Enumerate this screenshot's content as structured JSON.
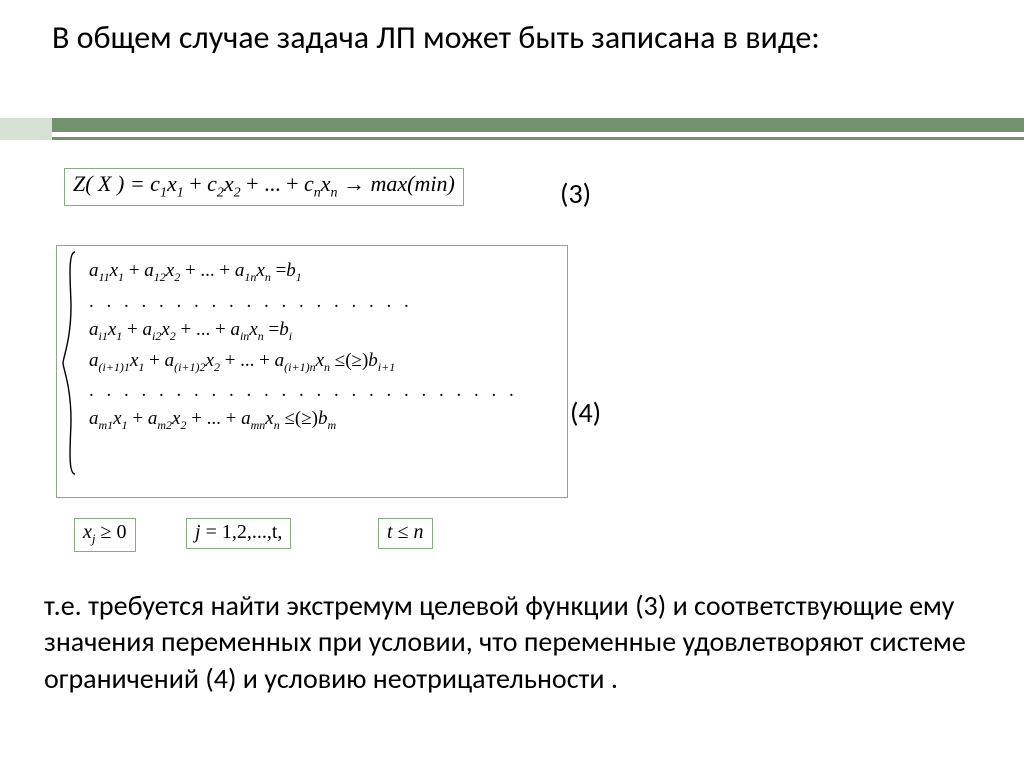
{
  "colors": {
    "accent": "#72926e",
    "accent_light": "#d8e1d6",
    "box_border": "#8aa987",
    "text": "#000000",
    "background": "#ffffff"
  },
  "typography": {
    "body_font": "Calibri",
    "math_font": "Times New Roman",
    "heading_size_pt": 32,
    "body_size_pt": 28,
    "math_size_pt": 20
  },
  "heading": "В общем случае задача ЛП может быть записана в виде:",
  "objective": {
    "parts": {
      "lhs": "Z( X ) =",
      "term1_coef": "c",
      "term1_sub": "1",
      "term1_var": "x",
      "term1_vsub": "1",
      "plus": " + ",
      "term2_coef": "c",
      "term2_sub": "2",
      "term2_var": "x",
      "term2_vsub": "2",
      "ell": " + ... + ",
      "termn_coef": "c",
      "termn_sub": "n",
      "termn_var": "x",
      "termn_vsub": "n",
      "arrow": " → ",
      "rhs": "max(min)"
    },
    "label": "(3)"
  },
  "system": {
    "rows": [
      {
        "type": "eq",
        "a1s": "11",
        "a2s": "12",
        "ans": "1n",
        "rel": "=",
        "b": "b",
        "bs": "1"
      },
      {
        "type": "dots",
        "text": ". . . . . . . . . . . . . . . . . . ."
      },
      {
        "type": "eq",
        "a1s": "i1",
        "a2s": "i2",
        "ans": "in",
        "rel": "=",
        "b": "b",
        "bs": "i"
      },
      {
        "type": "ineq",
        "a1s": "(i+1)1",
        "a2s": "(i+1)2",
        "ans": "(i+1)n",
        "rel": "≤(≥)",
        "b": "b",
        "bs": "i+1"
      },
      {
        "type": "dots",
        "text": ". . . . . . . . . . . . . . . . . . . . . . . . ."
      },
      {
        "type": "ineq",
        "a1s": "m1",
        "a2s": "m2",
        "ans": "mn",
        "rel": "≤(≥)",
        "b": "b",
        "bs": "m"
      }
    ],
    "var": "x",
    "x_subs": [
      "1",
      "2",
      "n"
    ],
    "coef": "a",
    "plus": " + ",
    "ell": " + ... + ",
    "label": "(4)"
  },
  "small_boxes": {
    "b1_var": "x",
    "b1_sub": "j",
    "b1_rel": " ≥ 0",
    "b2_var": "j",
    "b2_eq": " = 1,2,...,t,",
    "b3_lhs": "t",
    "b3_rel": " ≤ ",
    "b3_rhs": "n"
  },
  "bottom": "т.е. требуется найти экстремум целевой функции (3) и соответствующие ему значения переменных   при условии, что переменные удовлетворяют системе ограничений (4)  и условию неотрицательности ."
}
